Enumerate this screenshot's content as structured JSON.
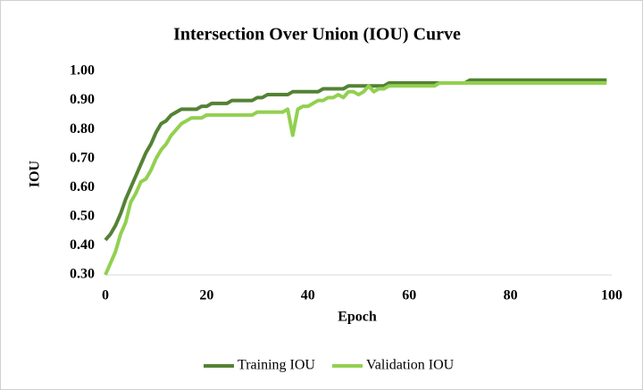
{
  "chart_data": {
    "type": "line",
    "title": "Intersection Over Union (IOU) Curve",
    "x_label": "Epoch",
    "y_label": "IOU",
    "x": [
      0,
      1,
      2,
      3,
      4,
      5,
      6,
      7,
      8,
      9,
      10,
      11,
      12,
      13,
      14,
      15,
      16,
      17,
      18,
      19,
      20,
      21,
      22,
      23,
      24,
      25,
      26,
      27,
      28,
      29,
      30,
      31,
      32,
      33,
      34,
      35,
      36,
      37,
      38,
      39,
      40,
      41,
      42,
      43,
      44,
      45,
      46,
      47,
      48,
      49,
      50,
      51,
      52,
      53,
      54,
      55,
      56,
      57,
      58,
      59,
      60,
      61,
      62,
      63,
      64,
      65,
      66,
      67,
      68,
      69,
      70,
      71,
      72,
      73,
      74,
      75,
      76,
      77,
      78,
      79,
      80,
      81,
      82,
      83,
      84,
      85,
      86,
      87,
      88,
      89,
      90,
      91,
      92,
      93,
      94,
      95,
      96,
      97,
      98,
      99
    ],
    "series": [
      {
        "name": "Training IOU",
        "color": "#548235",
        "values": [
          0.42,
          0.44,
          0.47,
          0.51,
          0.56,
          0.6,
          0.64,
          0.68,
          0.72,
          0.75,
          0.79,
          0.82,
          0.83,
          0.85,
          0.86,
          0.87,
          0.87,
          0.87,
          0.87,
          0.88,
          0.88,
          0.89,
          0.89,
          0.89,
          0.89,
          0.9,
          0.9,
          0.9,
          0.9,
          0.9,
          0.91,
          0.91,
          0.92,
          0.92,
          0.92,
          0.92,
          0.92,
          0.93,
          0.93,
          0.93,
          0.93,
          0.93,
          0.93,
          0.94,
          0.94,
          0.94,
          0.94,
          0.94,
          0.95,
          0.95,
          0.95,
          0.95,
          0.95,
          0.95,
          0.95,
          0.95,
          0.96,
          0.96,
          0.96,
          0.96,
          0.96,
          0.96,
          0.96,
          0.96,
          0.96,
          0.96,
          0.96,
          0.96,
          0.96,
          0.96,
          0.96,
          0.96,
          0.97,
          0.97,
          0.97,
          0.97,
          0.97,
          0.97,
          0.97,
          0.97,
          0.97,
          0.97,
          0.97,
          0.97,
          0.97,
          0.97,
          0.97,
          0.97,
          0.97,
          0.97,
          0.97,
          0.97,
          0.97,
          0.97,
          0.97,
          0.97,
          0.97,
          0.97,
          0.97,
          0.97
        ]
      },
      {
        "name": "Validation IOU",
        "color": "#92d050",
        "values": [
          0.3,
          0.34,
          0.38,
          0.44,
          0.48,
          0.55,
          0.58,
          0.62,
          0.63,
          0.66,
          0.7,
          0.73,
          0.75,
          0.78,
          0.8,
          0.82,
          0.83,
          0.84,
          0.84,
          0.84,
          0.85,
          0.85,
          0.85,
          0.85,
          0.85,
          0.85,
          0.85,
          0.85,
          0.85,
          0.85,
          0.86,
          0.86,
          0.86,
          0.86,
          0.86,
          0.86,
          0.87,
          0.78,
          0.87,
          0.88,
          0.88,
          0.89,
          0.9,
          0.9,
          0.91,
          0.91,
          0.92,
          0.91,
          0.93,
          0.93,
          0.92,
          0.93,
          0.95,
          0.93,
          0.94,
          0.94,
          0.95,
          0.95,
          0.95,
          0.95,
          0.95,
          0.95,
          0.95,
          0.95,
          0.95,
          0.95,
          0.96,
          0.96,
          0.96,
          0.96,
          0.96,
          0.96,
          0.96,
          0.96,
          0.96,
          0.96,
          0.96,
          0.96,
          0.96,
          0.96,
          0.96,
          0.96,
          0.96,
          0.96,
          0.96,
          0.96,
          0.96,
          0.96,
          0.96,
          0.96,
          0.96,
          0.96,
          0.96,
          0.96,
          0.96,
          0.96,
          0.96,
          0.96,
          0.96,
          0.96
        ]
      }
    ],
    "xlim": [
      0,
      100
    ],
    "xticks": [
      0,
      20,
      40,
      60,
      80,
      100
    ],
    "ylim": [
      0.3,
      1.0
    ],
    "yticks": [
      {
        "value": 0.3,
        "label": "0.30"
      },
      {
        "value": 0.4,
        "label": "0.40"
      },
      {
        "value": 0.5,
        "label": "0.50"
      },
      {
        "value": 0.6,
        "label": "0.60"
      },
      {
        "value": 0.7,
        "label": "0.70"
      },
      {
        "value": 0.8,
        "label": "0.80"
      },
      {
        "value": 0.9,
        "label": "0.90"
      },
      {
        "value": 1.0,
        "label": "1.00"
      }
    ],
    "grid": false,
    "legend": "bottom"
  }
}
